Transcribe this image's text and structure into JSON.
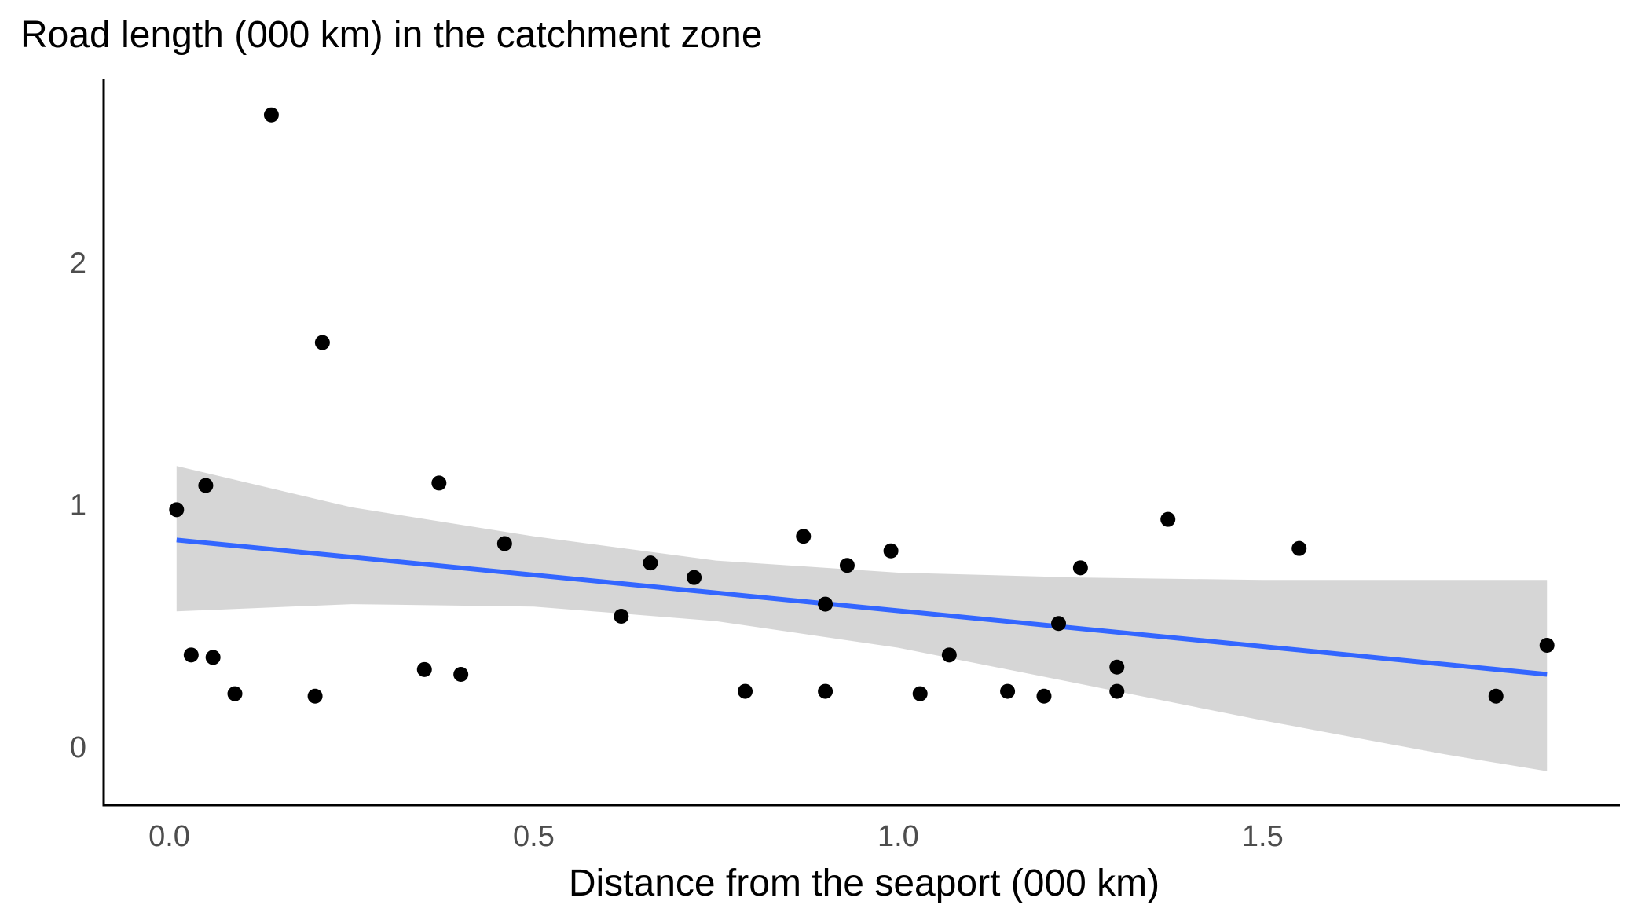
{
  "chart_data": {
    "type": "scatter",
    "title": "Road length (000 km) in the catchment zone",
    "xlabel": "Distance from the seaport (000 km)",
    "ylabel": "",
    "xlim": [
      -0.09,
      1.99
    ],
    "ylim": [
      -0.24,
      2.76
    ],
    "x_ticks": [
      0.0,
      0.5,
      1.0,
      1.5
    ],
    "x_tick_labels": [
      "0.0",
      "0.5",
      "1.0",
      "1.5"
    ],
    "y_ticks": [
      0,
      1,
      2
    ],
    "y_tick_labels": [
      "0",
      "1",
      "2"
    ],
    "grid": false,
    "legend": "none",
    "colors": {
      "points": "#000000",
      "fit_line": "#3366FF",
      "confidence_band": "#999999",
      "confidence_band_opacity": 0.4,
      "axis": "#000000",
      "tick_text": "#4d4d4d"
    },
    "points": [
      {
        "x": 0.01,
        "y": 0.98
      },
      {
        "x": 0.05,
        "y": 1.08
      },
      {
        "x": 0.03,
        "y": 0.38
      },
      {
        "x": 0.06,
        "y": 0.37
      },
      {
        "x": 0.09,
        "y": 0.22
      },
      {
        "x": 0.14,
        "y": 2.61
      },
      {
        "x": 0.2,
        "y": 0.21
      },
      {
        "x": 0.21,
        "y": 1.67
      },
      {
        "x": 0.35,
        "y": 0.32
      },
      {
        "x": 0.37,
        "y": 1.09
      },
      {
        "x": 0.4,
        "y": 0.3
      },
      {
        "x": 0.46,
        "y": 0.84
      },
      {
        "x": 0.62,
        "y": 0.54
      },
      {
        "x": 0.66,
        "y": 0.76
      },
      {
        "x": 0.72,
        "y": 0.7
      },
      {
        "x": 0.79,
        "y": 0.23
      },
      {
        "x": 0.87,
        "y": 0.87
      },
      {
        "x": 0.9,
        "y": 0.59
      },
      {
        "x": 0.9,
        "y": 0.23
      },
      {
        "x": 0.93,
        "y": 0.75
      },
      {
        "x": 0.99,
        "y": 0.81
      },
      {
        "x": 1.03,
        "y": 0.22
      },
      {
        "x": 1.07,
        "y": 0.38
      },
      {
        "x": 1.15,
        "y": 0.23
      },
      {
        "x": 1.2,
        "y": 0.21
      },
      {
        "x": 1.22,
        "y": 0.51
      },
      {
        "x": 1.25,
        "y": 0.74
      },
      {
        "x": 1.3,
        "y": 0.33
      },
      {
        "x": 1.3,
        "y": 0.23
      },
      {
        "x": 1.37,
        "y": 0.94
      },
      {
        "x": 1.55,
        "y": 0.82
      },
      {
        "x": 1.82,
        "y": 0.21
      },
      {
        "x": 1.89,
        "y": 0.42
      }
    ],
    "fit_line": {
      "method": "linear",
      "x": [
        0.01,
        1.89
      ],
      "y": [
        0.855,
        0.3
      ]
    },
    "confidence_band": {
      "x": [
        0.01,
        0.25,
        0.5,
        0.75,
        1.0,
        1.25,
        1.5,
        1.75,
        1.89
      ],
      "lower": [
        0.56,
        0.59,
        0.58,
        0.52,
        0.41,
        0.26,
        0.11,
        -0.03,
        -0.1
      ],
      "upper": [
        1.16,
        0.99,
        0.87,
        0.77,
        0.72,
        0.7,
        0.69,
        0.69,
        0.69
      ]
    }
  }
}
